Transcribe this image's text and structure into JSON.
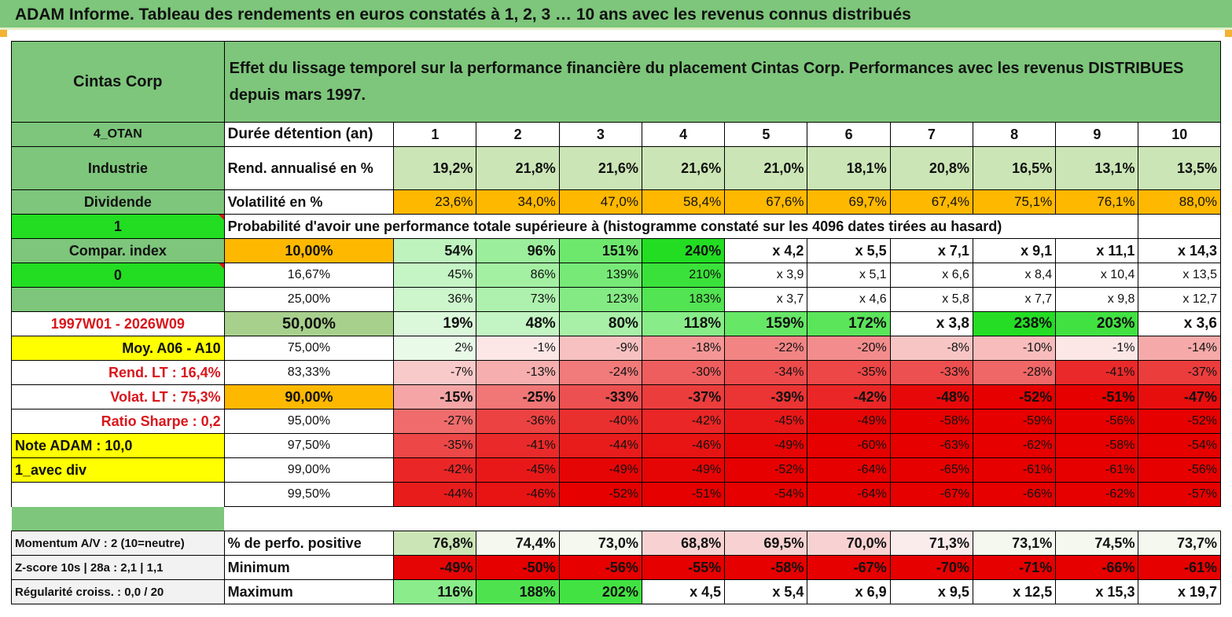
{
  "title": "ADAM Informe. Tableau des rendements en euros constatés à 1, 2, 3 … 10 ans avec les revenus connus distribués",
  "colors": {
    "header_green": "#7dc67b",
    "light_green": "#a8d08d",
    "bright_green": "#22dd22",
    "yellow": "#ffff00",
    "orange": "#ffb800",
    "red_text": "#d9161c",
    "negative_red": "#e60000"
  },
  "header": {
    "name": "Cintas Corp",
    "description": "Effet du lissage temporel sur la performance financière du placement Cintas Corp. Performances avec les revenus DISTRIBUES depuis mars 1997."
  },
  "left_labels": {
    "code": "4_OTAN",
    "sector": "Industrie",
    "type": "Dividende",
    "flag1": "1",
    "compar": "Compar. index",
    "flag0": "0",
    "blank": "",
    "period": "1997W01 - 2026W09",
    "moy": "Moy. A06 - A10",
    "rend_lt": "Rend. LT :   16,4%",
    "volat_lt": "Volat. LT :   75,3%",
    "sharpe": "Ratio Sharpe :    0,2",
    "note": "Note ADAM : 10,0",
    "avec_div": "1_avec div"
  },
  "rows_top": {
    "duree_label": "Durée détention (an)",
    "years": [
      "1",
      "2",
      "3",
      "4",
      "5",
      "6",
      "7",
      "8",
      "9",
      "10"
    ],
    "rend_label": "Rend. annualisé en %",
    "rend": [
      "19,2%",
      "21,8%",
      "21,6%",
      "21,6%",
      "21,0%",
      "18,1%",
      "20,8%",
      "16,5%",
      "13,1%",
      "13,5%"
    ],
    "vol_label": "Volatilité en %",
    "vol": [
      "23,6%",
      "34,0%",
      "47,0%",
      "58,4%",
      "67,6%",
      "69,7%",
      "67,4%",
      "75,1%",
      "76,1%",
      "88,0%"
    ],
    "proba_label": "Probabilité d'avoir une performance totale supérieure à (histogramme constaté sur les 4096 dates tirées au hasard)"
  },
  "percentiles": [
    {
      "p": "10,00%",
      "values": [
        "54%",
        "96%",
        "151%",
        "240%",
        "x 4,2",
        "x 5,5",
        "x 7,1",
        "x 9,1",
        "x 11,1",
        "x 14,3"
      ]
    },
    {
      "p": "16,67%",
      "values": [
        "45%",
        "86%",
        "139%",
        "210%",
        "x 3,9",
        "x 5,1",
        "x 6,6",
        "x 8,4",
        "x 10,4",
        "x 13,5"
      ]
    },
    {
      "p": "25,00%",
      "values": [
        "36%",
        "73%",
        "123%",
        "183%",
        "x 3,7",
        "x 4,6",
        "x 5,8",
        "x 7,7",
        "x 9,8",
        "x 12,7"
      ]
    },
    {
      "p": "50,00%",
      "values": [
        "19%",
        "48%",
        "80%",
        "118%",
        "159%",
        "172%",
        "x 3,8",
        "238%",
        "203%",
        "x 3,6"
      ]
    },
    {
      "p": "75,00%",
      "values": [
        "2%",
        "-1%",
        "-9%",
        "-18%",
        "-22%",
        "-20%",
        "-8%",
        "-10%",
        "-1%",
        "-14%"
      ]
    },
    {
      "p": "83,33%",
      "values": [
        "-7%",
        "-13%",
        "-24%",
        "-30%",
        "-34%",
        "-35%",
        "-33%",
        "-28%",
        "-41%",
        "-37%"
      ]
    },
    {
      "p": "90,00%",
      "values": [
        "-15%",
        "-25%",
        "-33%",
        "-37%",
        "-39%",
        "-42%",
        "-48%",
        "-52%",
        "-51%",
        "-47%"
      ]
    },
    {
      "p": "95,00%",
      "values": [
        "-27%",
        "-36%",
        "-40%",
        "-42%",
        "-45%",
        "-49%",
        "-58%",
        "-59%",
        "-56%",
        "-52%"
      ]
    },
    {
      "p": "97,50%",
      "values": [
        "-35%",
        "-41%",
        "-44%",
        "-46%",
        "-49%",
        "-60%",
        "-63%",
        "-62%",
        "-58%",
        "-54%"
      ]
    },
    {
      "p": "99,00%",
      "values": [
        "-42%",
        "-45%",
        "-49%",
        "-49%",
        "-52%",
        "-64%",
        "-65%",
        "-61%",
        "-61%",
        "-56%"
      ]
    },
    {
      "p": "99,50%",
      "values": [
        "-44%",
        "-46%",
        "-52%",
        "-51%",
        "-54%",
        "-64%",
        "-67%",
        "-66%",
        "-62%",
        "-57%"
      ]
    }
  ],
  "bottom": {
    "momentum": "Momentum A/V : 2 (10=neutre)",
    "zscore": "Z-score 10s | 28a : 2,1 | 1,1",
    "regularite": "Régularité croiss. : 0,0 / 20",
    "pos_label": "% de perfo. positive",
    "pos": [
      "76,8%",
      "74,4%",
      "73,0%",
      "68,8%",
      "69,5%",
      "70,0%",
      "71,3%",
      "73,1%",
      "74,5%",
      "73,7%"
    ],
    "min_label": "Minimum",
    "min": [
      "-49%",
      "-50%",
      "-56%",
      "-55%",
      "-58%",
      "-67%",
      "-70%",
      "-71%",
      "-66%",
      "-61%"
    ],
    "max_label": "Maximum",
    "max": [
      "116%",
      "188%",
      "202%",
      "x 4,5",
      "x 5,4",
      "x 6,9",
      "x 9,5",
      "x 12,5",
      "x 15,3",
      "x 19,7"
    ]
  }
}
